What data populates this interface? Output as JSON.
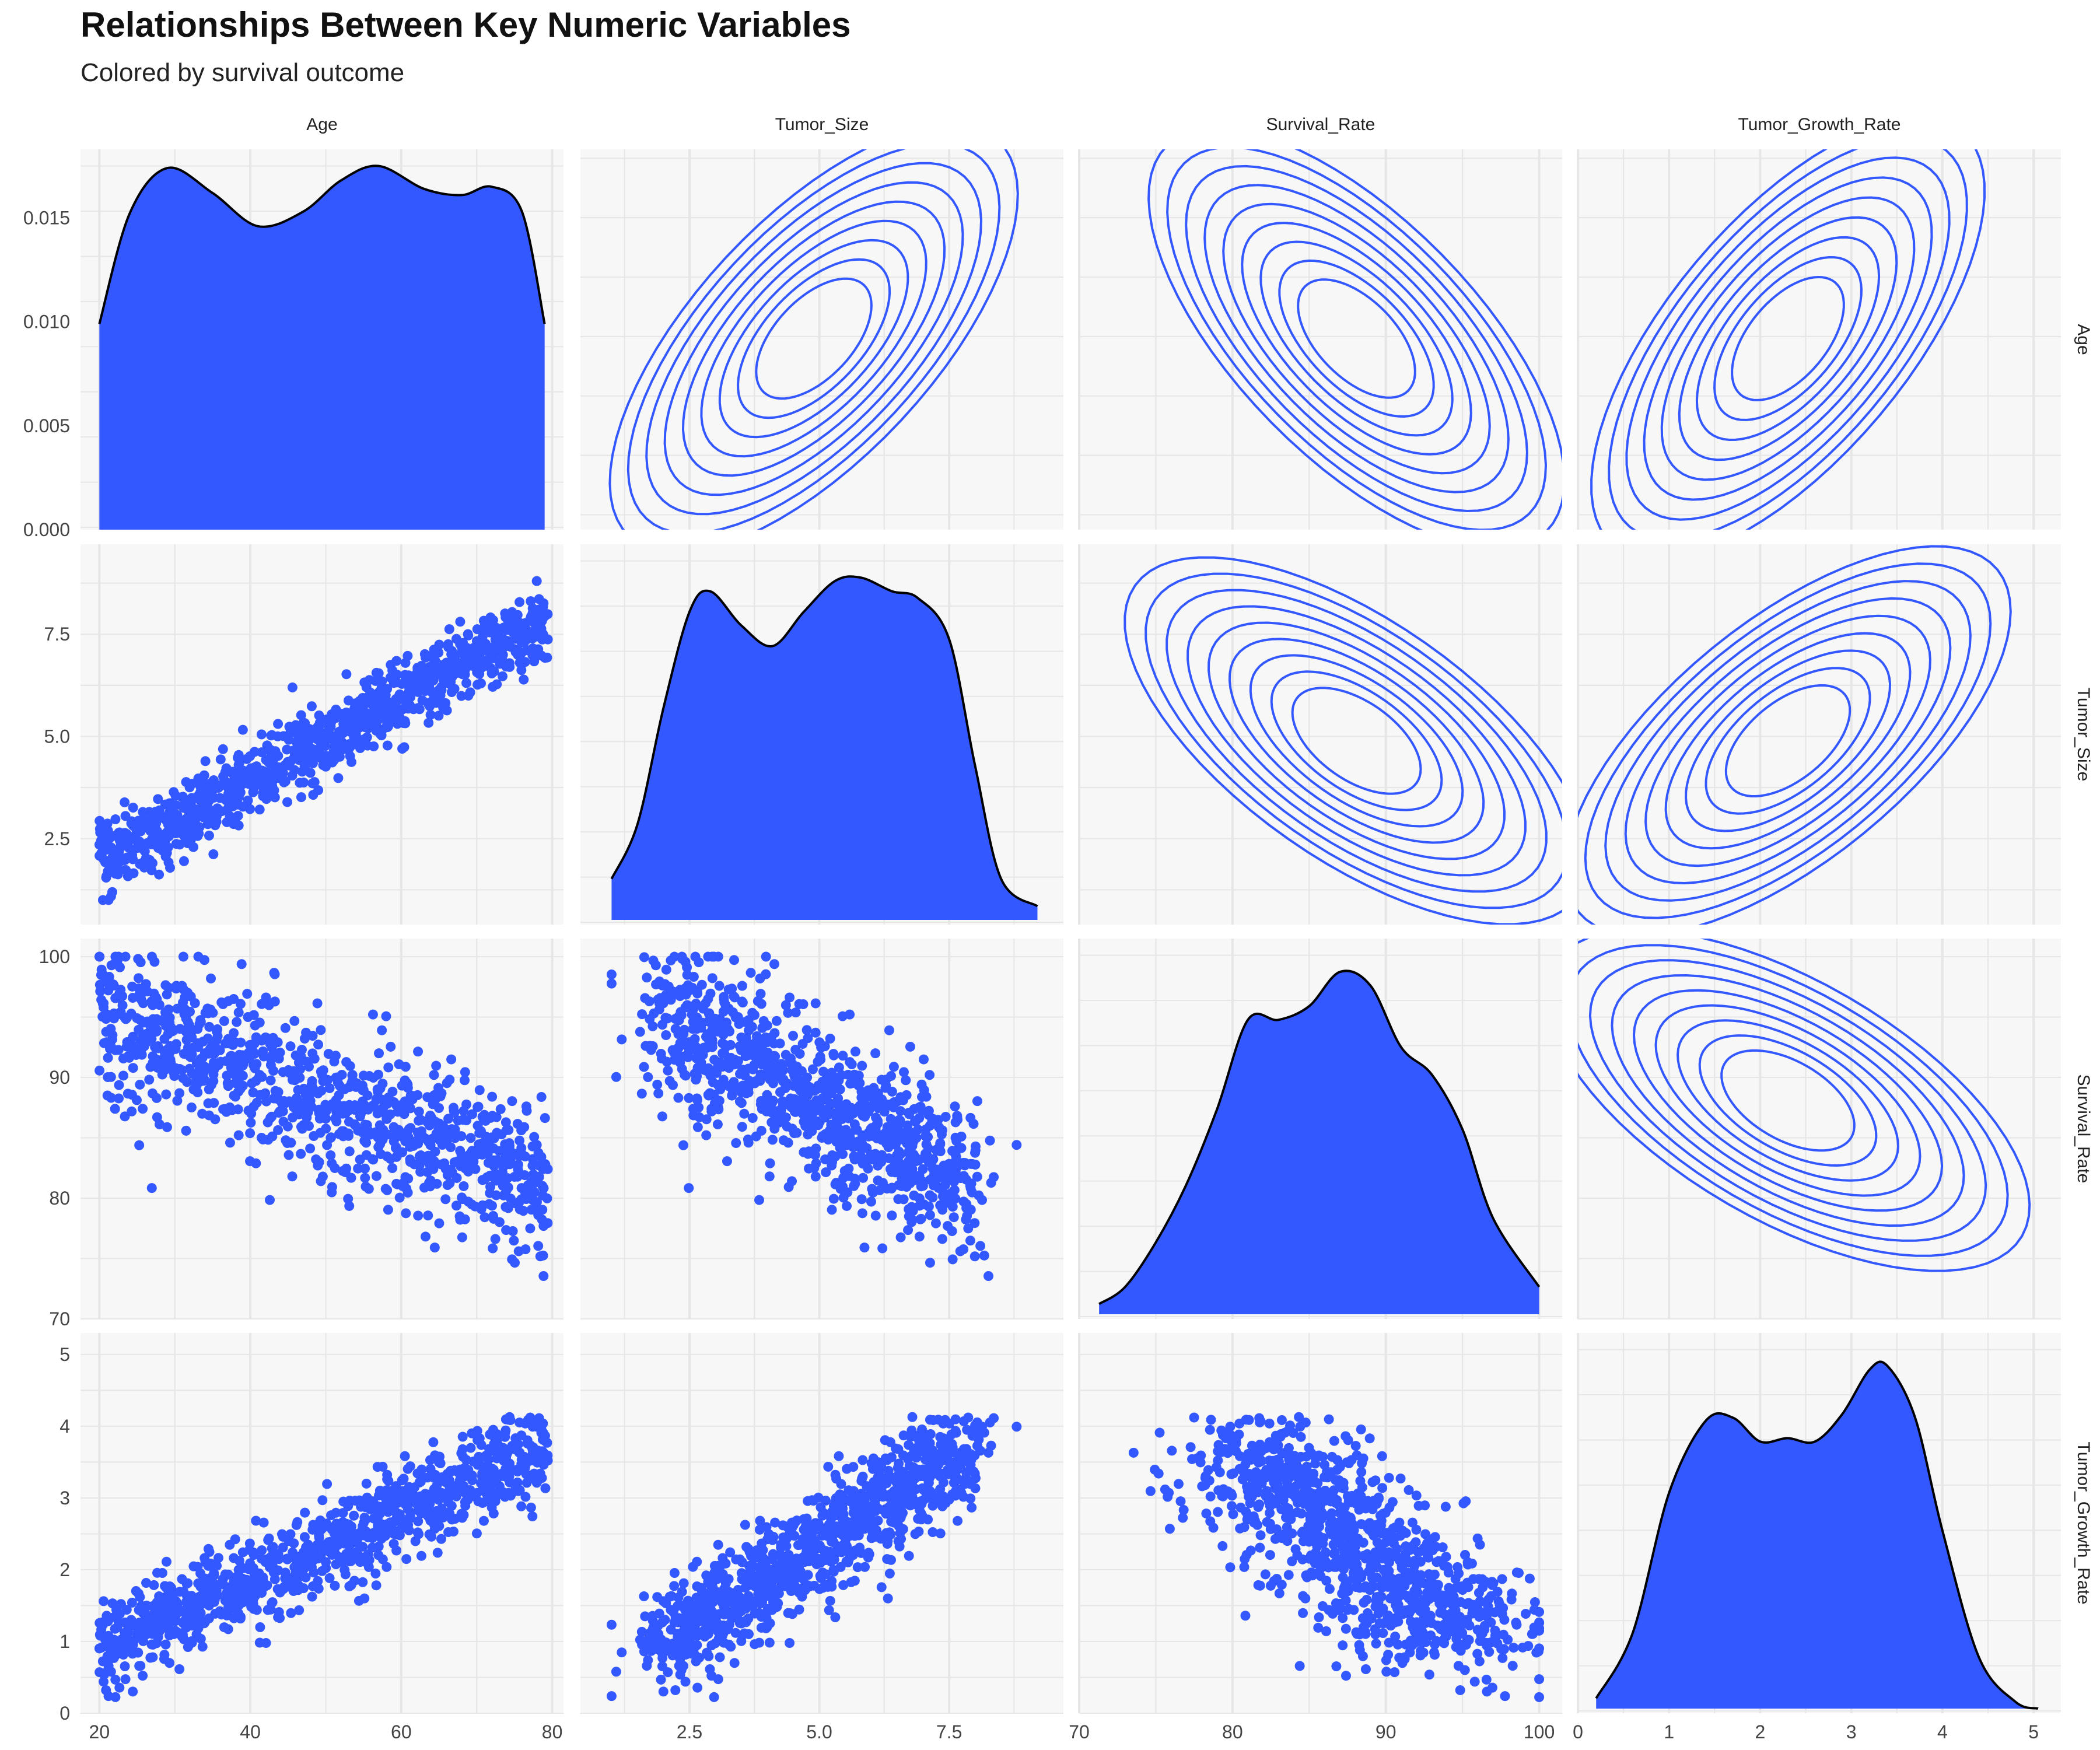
{
  "title": "Relationships Between Key Numeric Variables",
  "subtitle": "Colored by survival outcome",
  "chart_data": {
    "type": "pairplot",
    "title": "Relationships Between Key Numeric Variables",
    "subtitle": "Colored by survival outcome",
    "variables": [
      "Age",
      "Tumor_Size",
      "Survival_Rate",
      "Tumor_Growth_Rate"
    ],
    "colors": {
      "fill": "#3358FF",
      "contour": "#3358FF",
      "outline": "#000000",
      "panel_bg": "#F7F7F7",
      "grid": "#E6E6E6"
    },
    "grid": true,
    "diagonal": "density",
    "upper": "density_contour",
    "lower": "scatter",
    "n_points": 1000,
    "axes": {
      "Age": {
        "range": [
          17.5,
          81.5
        ],
        "ticks": [
          20,
          40,
          60,
          80
        ],
        "tick_labels": [
          "20",
          "40",
          "60",
          "80"
        ]
      },
      "Tumor_Size": {
        "range": [
          0.4,
          9.7
        ],
        "ticks": [
          2.5,
          5.0,
          7.5
        ],
        "tick_labels": [
          "2.5",
          "5.0",
          "7.5"
        ]
      },
      "Survival_Rate": {
        "range": [
          70,
          101.5
        ],
        "ticks": [
          70,
          80,
          90,
          100
        ],
        "tick_labels": [
          "70",
          "80",
          "90",
          "100"
        ]
      },
      "Tumor_Growth_Rate": {
        "range": [
          0,
          5.3
        ],
        "ticks": [
          0,
          1,
          2,
          3,
          4,
          5
        ],
        "tick_labels": [
          "0",
          "1",
          "2",
          "3",
          "4",
          "5"
        ]
      }
    },
    "age_density_axis": {
      "range": [
        0,
        0.0183
      ],
      "ticks": [
        0,
        0.005,
        0.01,
        0.015
      ],
      "tick_labels": [
        "0.000",
        "0.005",
        "0.010",
        "0.015"
      ]
    },
    "diagonal_densities": [
      {
        "variable": "Age",
        "x": [
          20,
          24,
          29,
          35,
          41,
          47,
          52,
          57,
          63,
          68,
          72,
          76,
          79
        ],
        "y": [
          0.0099,
          0.0152,
          0.0174,
          0.0162,
          0.0146,
          0.0153,
          0.0168,
          0.0175,
          0.0164,
          0.0161,
          0.0165,
          0.0153,
          0.0099
        ]
      },
      {
        "variable": "Tumor_Size",
        "x": [
          1.0,
          1.5,
          2.0,
          2.5,
          2.9,
          3.5,
          4.1,
          4.7,
          5.3,
          5.8,
          6.4,
          6.9,
          7.5,
          8.0,
          8.5,
          9.2
        ],
        "y": [
          0.12,
          0.28,
          0.62,
          0.9,
          0.96,
          0.86,
          0.8,
          0.9,
          0.99,
          1.0,
          0.96,
          0.94,
          0.82,
          0.45,
          0.12,
          0.04
        ]
      },
      {
        "variable": "Survival_Rate",
        "x": [
          71.3,
          73,
          75,
          77,
          79,
          81,
          83,
          85,
          87,
          89,
          91,
          93,
          95,
          97,
          100
        ],
        "y": [
          0.03,
          0.08,
          0.21,
          0.38,
          0.6,
          0.86,
          0.86,
          0.9,
          1.0,
          0.96,
          0.78,
          0.7,
          0.54,
          0.28,
          0.08
        ]
      },
      {
        "variable": "Tumor_Growth_Rate",
        "x": [
          0.2,
          0.6,
          1.0,
          1.4,
          1.7,
          2.0,
          2.3,
          2.6,
          2.9,
          3.2,
          3.4,
          3.7,
          4.0,
          4.4,
          4.8,
          5.05
        ],
        "y": [
          0.03,
          0.22,
          0.63,
          0.84,
          0.85,
          0.78,
          0.79,
          0.78,
          0.86,
          0.99,
          1.0,
          0.85,
          0.52,
          0.15,
          0.02,
          0.0
        ]
      }
    ],
    "relations": {
      "Age|Tumor_Size": {
        "slope": 0.1,
        "intercept": -0.05,
        "noise": 0.45
      },
      "Age|Survival_Rate": {
        "slope": -0.25,
        "intercept": 100.5,
        "noise": 3.2
      },
      "Age|Tumor_Growth_Rate": {
        "slope": 0.048,
        "intercept": -0.09,
        "noise": 0.33
      },
      "Tumor_Size|Survival_Rate": {
        "slope": -2.45,
        "intercept": 97.6,
        "noise": 2.8
      },
      "Tumor_Size|Tumor_Growth_Rate": {
        "slope": 0.47,
        "intercept": -0.03,
        "noise": 0.22
      },
      "Survival_Rate|Tumor_Growth_Rate": {
        "slope": -0.15,
        "intercept": 15.0,
        "noise": 0.45
      }
    }
  }
}
